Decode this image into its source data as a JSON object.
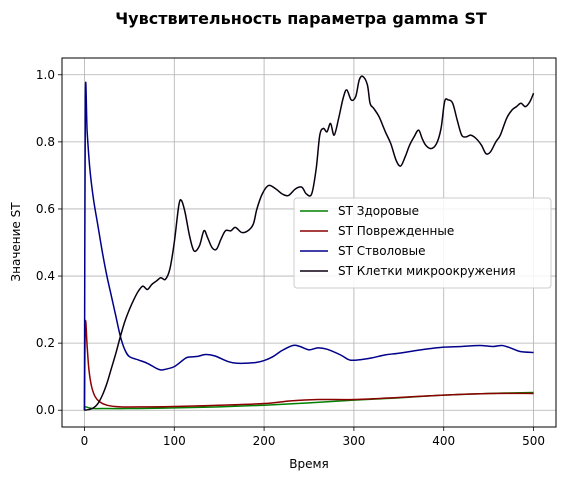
{
  "chart_data": {
    "type": "line",
    "title": "Чувствительность параметра gamma ST",
    "xlabel": "Время",
    "ylabel": "Значение ST",
    "xlim": [
      -25,
      525
    ],
    "ylim": [
      -0.05,
      1.05
    ],
    "xticks": [
      0,
      100,
      200,
      300,
      400,
      500
    ],
    "yticks": [
      0.0,
      0.2,
      0.4,
      0.6,
      0.8,
      1.0
    ],
    "xtick_labels": [
      "0",
      "100",
      "200",
      "300",
      "400",
      "500"
    ],
    "ytick_labels": [
      "0.0",
      "0.2",
      "0.4",
      "0.6",
      "0.8",
      "1.0"
    ],
    "grid": true,
    "legend_position": "center-right",
    "series": [
      {
        "name": "ST Здоровые",
        "color": "#008000",
        "points": [
          [
            0,
            0
          ],
          [
            1,
            0.01
          ],
          [
            5,
            0.007
          ],
          [
            10,
            0.005
          ],
          [
            20,
            0.005
          ],
          [
            50,
            0.005
          ],
          [
            80,
            0.006
          ],
          [
            100,
            0.007
          ],
          [
            150,
            0.01
          ],
          [
            200,
            0.015
          ],
          [
            250,
            0.022
          ],
          [
            300,
            0.03
          ],
          [
            350,
            0.037
          ],
          [
            400,
            0.045
          ],
          [
            450,
            0.05
          ],
          [
            500,
            0.053
          ]
        ]
      },
      {
        "name": "ST Поврежденные",
        "color": "#8b0000",
        "points": [
          [
            0,
            0
          ],
          [
            1,
            0.26
          ],
          [
            3,
            0.19
          ],
          [
            5,
            0.12
          ],
          [
            8,
            0.07
          ],
          [
            12,
            0.04
          ],
          [
            17,
            0.025
          ],
          [
            25,
            0.015
          ],
          [
            40,
            0.01
          ],
          [
            70,
            0.01
          ],
          [
            100,
            0.011
          ],
          [
            150,
            0.015
          ],
          [
            200,
            0.02
          ],
          [
            230,
            0.028
          ],
          [
            260,
            0.032
          ],
          [
            300,
            0.032
          ],
          [
            350,
            0.038
          ],
          [
            400,
            0.045
          ],
          [
            450,
            0.05
          ],
          [
            500,
            0.05
          ]
        ]
      },
      {
        "name": "ST Стволовые",
        "color": "#00008b",
        "points": [
          [
            0,
            0
          ],
          [
            1,
            0.93
          ],
          [
            3,
            0.83
          ],
          [
            6,
            0.72
          ],
          [
            10,
            0.63
          ],
          [
            15,
            0.55
          ],
          [
            20,
            0.47
          ],
          [
            25,
            0.4
          ],
          [
            30,
            0.34
          ],
          [
            35,
            0.28
          ],
          [
            40,
            0.22
          ],
          [
            45,
            0.18
          ],
          [
            50,
            0.16
          ],
          [
            60,
            0.15
          ],
          [
            70,
            0.14
          ],
          [
            80,
            0.125
          ],
          [
            85,
            0.12
          ],
          [
            90,
            0.122
          ],
          [
            100,
            0.13
          ],
          [
            110,
            0.15
          ],
          [
            115,
            0.158
          ],
          [
            125,
            0.16
          ],
          [
            135,
            0.166
          ],
          [
            145,
            0.162
          ],
          [
            160,
            0.145
          ],
          [
            170,
            0.14
          ],
          [
            190,
            0.142
          ],
          [
            200,
            0.148
          ],
          [
            210,
            0.16
          ],
          [
            220,
            0.178
          ],
          [
            232,
            0.193
          ],
          [
            240,
            0.19
          ],
          [
            250,
            0.18
          ],
          [
            260,
            0.186
          ],
          [
            270,
            0.182
          ],
          [
            285,
            0.165
          ],
          [
            295,
            0.15
          ],
          [
            305,
            0.15
          ],
          [
            320,
            0.156
          ],
          [
            335,
            0.165
          ],
          [
            350,
            0.17
          ],
          [
            380,
            0.182
          ],
          [
            400,
            0.188
          ],
          [
            420,
            0.19
          ],
          [
            440,
            0.193
          ],
          [
            455,
            0.19
          ],
          [
            465,
            0.193
          ],
          [
            475,
            0.185
          ],
          [
            485,
            0.175
          ],
          [
            500,
            0.172
          ]
        ]
      },
      {
        "name": "ST Клетки микроокружения",
        "color": "#0a0010",
        "points": [
          [
            0,
            0
          ],
          [
            5,
            0.002
          ],
          [
            10,
            0.007
          ],
          [
            15,
            0.02
          ],
          [
            20,
            0.045
          ],
          [
            25,
            0.08
          ],
          [
            30,
            0.125
          ],
          [
            35,
            0.17
          ],
          [
            40,
            0.22
          ],
          [
            45,
            0.265
          ],
          [
            50,
            0.3
          ],
          [
            55,
            0.33
          ],
          [
            60,
            0.355
          ],
          [
            65,
            0.37
          ],
          [
            70,
            0.36
          ],
          [
            75,
            0.375
          ],
          [
            80,
            0.385
          ],
          [
            85,
            0.395
          ],
          [
            90,
            0.39
          ],
          [
            95,
            0.42
          ],
          [
            100,
            0.5
          ],
          [
            105,
            0.61
          ],
          [
            108,
            0.625
          ],
          [
            112,
            0.59
          ],
          [
            117,
            0.52
          ],
          [
            122,
            0.475
          ],
          [
            128,
            0.49
          ],
          [
            133,
            0.535
          ],
          [
            137,
            0.515
          ],
          [
            142,
            0.485
          ],
          [
            147,
            0.48
          ],
          [
            152,
            0.51
          ],
          [
            157,
            0.535
          ],
          [
            163,
            0.535
          ],
          [
            168,
            0.545
          ],
          [
            175,
            0.53
          ],
          [
            182,
            0.535
          ],
          [
            188,
            0.555
          ],
          [
            192,
            0.6
          ],
          [
            198,
            0.645
          ],
          [
            205,
            0.67
          ],
          [
            213,
            0.66
          ],
          [
            220,
            0.645
          ],
          [
            227,
            0.64
          ],
          [
            235,
            0.66
          ],
          [
            242,
            0.665
          ],
          [
            247,
            0.645
          ],
          [
            253,
            0.645
          ],
          [
            258,
            0.72
          ],
          [
            262,
            0.82
          ],
          [
            266,
            0.84
          ],
          [
            270,
            0.83
          ],
          [
            274,
            0.855
          ],
          [
            278,
            0.82
          ],
          [
            283,
            0.87
          ],
          [
            288,
            0.93
          ],
          [
            292,
            0.955
          ],
          [
            297,
            0.925
          ],
          [
            302,
            0.935
          ],
          [
            306,
            0.985
          ],
          [
            310,
            0.995
          ],
          [
            315,
            0.97
          ],
          [
            318,
            0.915
          ],
          [
            322,
            0.9
          ],
          [
            328,
            0.875
          ],
          [
            335,
            0.83
          ],
          [
            341,
            0.795
          ],
          [
            347,
            0.745
          ],
          [
            352,
            0.728
          ],
          [
            357,
            0.755
          ],
          [
            362,
            0.79
          ],
          [
            367,
            0.815
          ],
          [
            372,
            0.835
          ],
          [
            376,
            0.81
          ],
          [
            380,
            0.79
          ],
          [
            386,
            0.78
          ],
          [
            392,
            0.795
          ],
          [
            397,
            0.84
          ],
          [
            401,
            0.92
          ],
          [
            405,
            0.925
          ],
          [
            410,
            0.915
          ],
          [
            415,
            0.865
          ],
          [
            420,
            0.82
          ],
          [
            425,
            0.815
          ],
          [
            430,
            0.82
          ],
          [
            436,
            0.81
          ],
          [
            442,
            0.79
          ],
          [
            447,
            0.765
          ],
          [
            452,
            0.77
          ],
          [
            458,
            0.8
          ],
          [
            463,
            0.82
          ],
          [
            470,
            0.87
          ],
          [
            476,
            0.895
          ],
          [
            481,
            0.905
          ],
          [
            486,
            0.915
          ],
          [
            491,
            0.905
          ],
          [
            496,
            0.92
          ],
          [
            500,
            0.945
          ]
        ]
      }
    ]
  }
}
